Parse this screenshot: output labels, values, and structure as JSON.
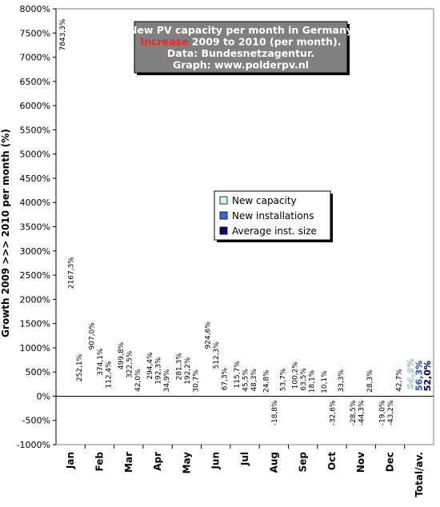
{
  "chart_data": {
    "type": "bar",
    "title_lines": [
      [
        {
          "text": "New PV capacity per month in Germany",
          "color": "#ffffff"
        }
      ],
      [
        {
          "text": "Increase",
          "color": "#ff2020"
        },
        {
          "text": " 2009 to 2010 (per month).",
          "color": "#ffffff"
        }
      ],
      [
        {
          "text": "Data: Bundesnetzagentur.",
          "color": "#ffffff"
        }
      ],
      [
        {
          "text": "Graph: www.polderpv.nl",
          "color": "#ffffff"
        }
      ]
    ],
    "ylabel": "Growth 2009 >>> 2010 per month (%)",
    "xlabel": "",
    "ylim": [
      -1000,
      8000
    ],
    "y_tick_step": 500,
    "y_tick_labels": [
      "-1000%",
      "-500%",
      "0%",
      "500%",
      "1000%",
      "1500%",
      "2000%",
      "2500%",
      "3000%",
      "3500%",
      "4000%",
      "4500%",
      "5000%",
      "5500%",
      "6000%",
      "6500%",
      "7000%",
      "7500%",
      "8000%"
    ],
    "grid": false,
    "legend_position": "center-right",
    "categories": [
      "Jan",
      "Feb",
      "Mar",
      "Apr",
      "May",
      "Jun",
      "Jul",
      "Aug",
      "Sep",
      "Oct",
      "Nov",
      "Dec",
      "Total/av."
    ],
    "series": [
      {
        "name": "New capacity",
        "color": "#ccffff",
        "values": [
          7843.3,
          907.0,
          499.8,
          294.4,
          281.3,
          924.6,
          115.7,
          24.8,
          100.2,
          10.1,
          -28.5,
          -19.0,
          94.9
        ],
        "labels": [
          "7843,3%",
          "907,0%",
          "499,8%",
          "294,4%",
          "281,3%",
          "924,6%",
          "115,7%",
          "24,8%",
          "100,2%",
          "10,1%",
          "-28,5%",
          "-19,0%",
          "94,9%"
        ]
      },
      {
        "name": "New installations",
        "color": "#3366ee",
        "values": [
          2167.3,
          374.1,
          322.5,
          192.3,
          192.2,
          512.3,
          45.5,
          -18.8,
          63.5,
          -32.6,
          -44.3,
          -43.2,
          56.3
        ],
        "labels": [
          "2167,3%",
          "374,1%",
          "322,5%",
          "192,3%",
          "192,2%",
          "512,3%",
          "45,5%",
          "-18,8%",
          "63,5%",
          "-32,6%",
          "-44,3%",
          "-43,2%",
          "56,3%"
        ]
      },
      {
        "name": "Average inst. size",
        "color": "#000080",
        "values": [
          252.1,
          112.4,
          42.0,
          34.9,
          30.7,
          67.3,
          48.3,
          53.7,
          18.1,
          33.3,
          28.3,
          42.7,
          52.0
        ],
        "labels": [
          "252,1%",
          "112,4%",
          "42,0%",
          "34,9%",
          "30,7%",
          "67,3%",
          "48,3%",
          "53,7%",
          "18,1%",
          "33,3%",
          "28,3%",
          "42,7%",
          "52,0%"
        ]
      }
    ]
  }
}
